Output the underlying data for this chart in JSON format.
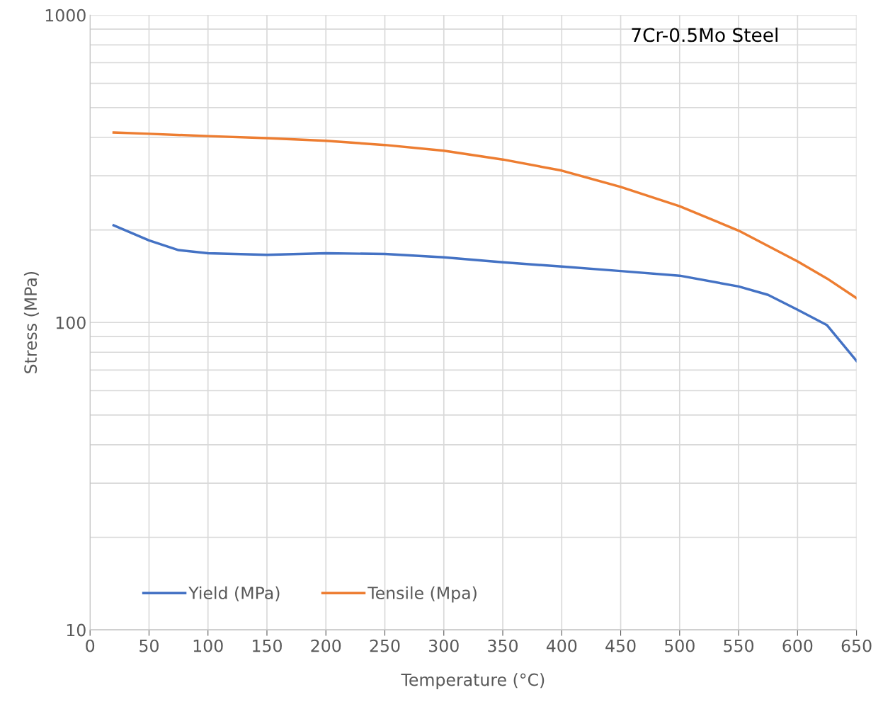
{
  "chart_data": {
    "type": "line",
    "xlabel": "Temperature (°C)",
    "ylabel": "Stress (MPa)",
    "log": "y",
    "annotations": [
      "7Cr-0.5Mo Steel"
    ],
    "xlim": [
      0,
      650
    ],
    "xticks": [
      0,
      50,
      100,
      150,
      200,
      250,
      300,
      350,
      400,
      450,
      500,
      550,
      600,
      650
    ],
    "ylim": [
      10,
      1000
    ],
    "yticks": [
      10,
      {
        "value": 20,
        "label": null
      },
      {
        "value": 30,
        "label": null
      },
      {
        "value": 40,
        "label": null
      },
      {
        "value": 50,
        "label": null
      },
      {
        "value": 60,
        "label": null
      },
      {
        "value": 70,
        "label": null
      },
      {
        "value": 80,
        "label": null
      },
      {
        "value": 90,
        "label": null
      },
      100,
      {
        "value": 200,
        "label": null
      },
      {
        "value": 300,
        "label": null
      },
      {
        "value": 400,
        "label": null
      },
      {
        "value": 500,
        "label": null
      },
      {
        "value": 600,
        "label": null
      },
      {
        "value": 700,
        "label": null
      },
      {
        "value": 800,
        "label": null
      },
      {
        "value": 900,
        "label": null
      },
      1000
    ],
    "grid": true,
    "legend": "bottom left",
    "marker": "none",
    "line_style": "solid",
    "series": [
      {
        "name": "Yield (MPa)",
        "color": "#4472c4",
        "x": [
          20,
          50,
          75,
          100,
          150,
          200,
          250,
          300,
          350,
          400,
          450,
          500,
          550,
          575,
          600,
          625,
          650
        ],
        "values": [
          207,
          185,
          172,
          168,
          166,
          168,
          167,
          163,
          157,
          152,
          147,
          142,
          131,
          123,
          110,
          98,
          75
        ]
      },
      {
        "name": "Tensile (Mpa)",
        "color": "#ed7d31",
        "x": [
          20,
          50,
          100,
          150,
          200,
          250,
          300,
          350,
          400,
          450,
          500,
          550,
          600,
          625,
          650
        ],
        "values": [
          415,
          411,
          404,
          398,
          390,
          378,
          362,
          339,
          312,
          276,
          239,
          199,
          158,
          139,
          120
        ]
      }
    ]
  }
}
